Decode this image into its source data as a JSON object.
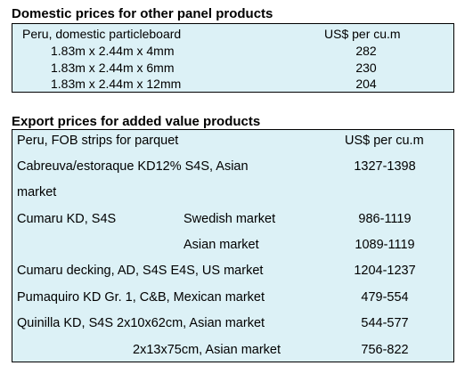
{
  "domestic": {
    "heading": "Domestic prices for other panel products",
    "header_product": "Peru, domestic particleboard",
    "header_unit": "US$ per cu.m",
    "rows": [
      {
        "product": "1.83m x 2.44m x 4mm",
        "price": "282"
      },
      {
        "product": "1.83m x 2.44m x 6mm",
        "price": "230"
      },
      {
        "product": "1.83m x 2.44m x 12mm",
        "price": "204"
      }
    ]
  },
  "export": {
    "heading": "Export prices for added value products",
    "header_product": "Peru, FOB strips for parquet",
    "header_unit": "US$ per cu.m",
    "rows": [
      {
        "product": "Cabreuva/estoraque KD12% S4S, Asian",
        "price": "1327-1398"
      },
      {
        "product": "market",
        "price": ""
      },
      {
        "product": "Cumaru KD, S4S",
        "market": "Swedish market",
        "price": "986-1119"
      },
      {
        "product": "",
        "market": "Asian market",
        "price": "1089-1119"
      },
      {
        "product": "Cumaru decking, AD, S4S E4S,  US market",
        "price": "1204-1237"
      },
      {
        "product": "Pumaquiro KD Gr. 1, C&B,  Mexican market",
        "price": "479-554"
      },
      {
        "product": "Quinilla KD, S4S 2x10x62cm,  Asian market",
        "price": "544-577"
      },
      {
        "product": "",
        "market": "2x13x75cm, Asian market",
        "price": "756-822"
      }
    ]
  }
}
